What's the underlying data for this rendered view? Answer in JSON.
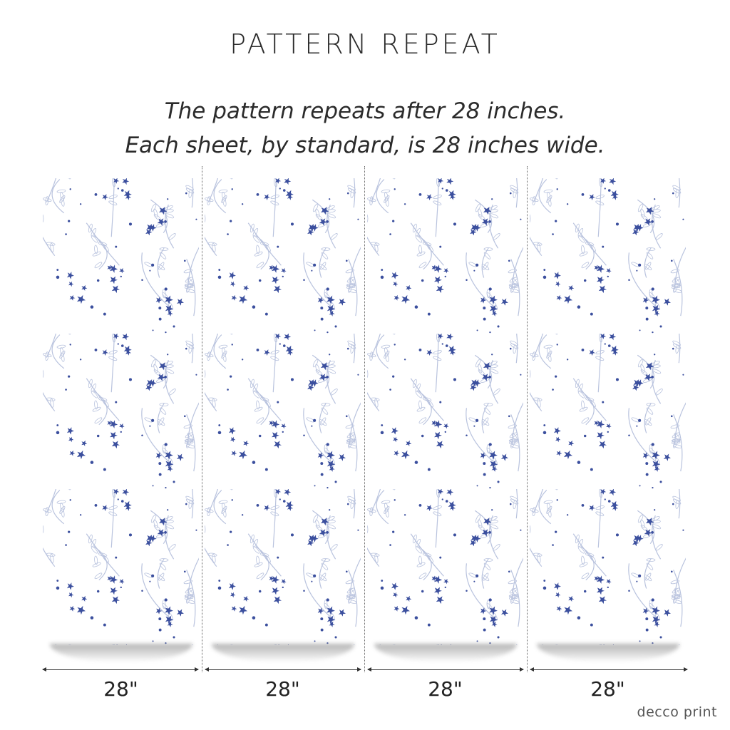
{
  "header": {
    "title": "PATTERN REPEAT",
    "line1": "The pattern repeats after 28 inches.",
    "line2": "Each sheet, by standard, is 28 inches wide."
  },
  "panels": [
    {
      "width_label": "28\""
    },
    {
      "width_label": "28\""
    },
    {
      "width_label": "28\""
    },
    {
      "width_label": "28\""
    }
  ],
  "pattern": {
    "flower_color": "#3b4f9e",
    "stem_color": "#b9c3de"
  },
  "brand": {
    "logo": "decco print"
  }
}
